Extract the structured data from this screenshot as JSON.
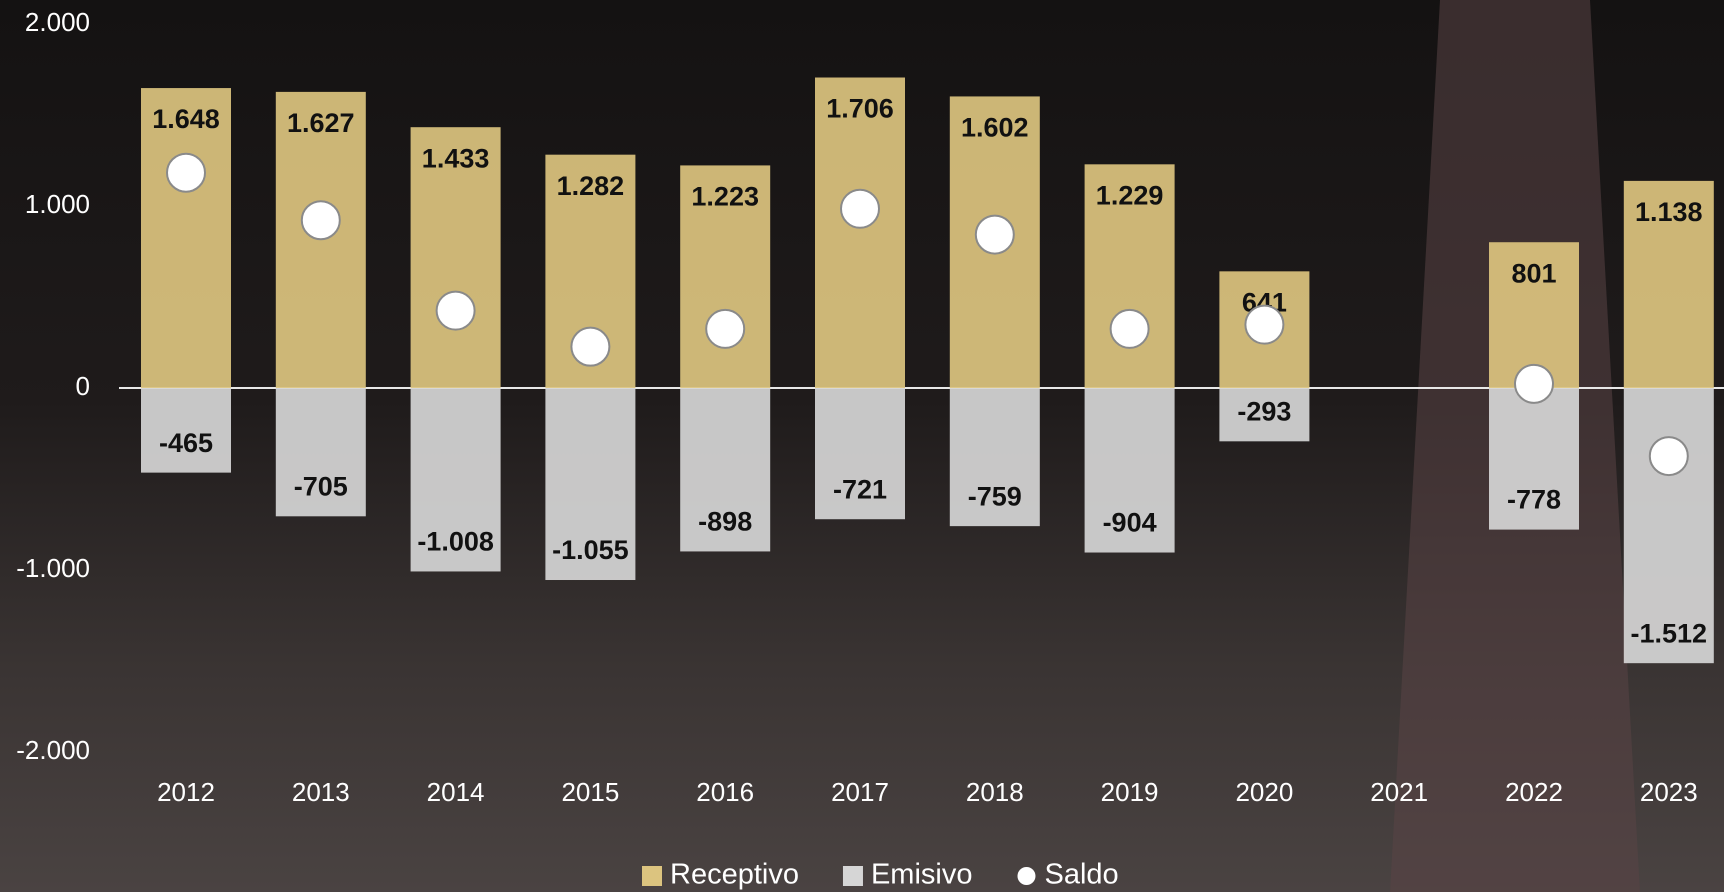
{
  "chart_data": {
    "type": "bar",
    "categories": [
      "2012",
      "2013",
      "2014",
      "2015",
      "2016",
      "2017",
      "2018",
      "2019",
      "2020",
      "2021",
      "2022",
      "2023"
    ],
    "series": [
      {
        "name": "Receptivo",
        "type": "bar",
        "color": "#dcc47f",
        "values": [
          1648,
          1627,
          1433,
          1282,
          1223,
          1706,
          1602,
          1229,
          641,
          null,
          801,
          1138
        ],
        "value_labels": [
          "1.648",
          "1.627",
          "1.433",
          "1.282",
          "1.223",
          "1.706",
          "1.602",
          "1.229",
          "641",
          null,
          "801",
          "1.138"
        ]
      },
      {
        "name": "Emisivo",
        "type": "bar",
        "color": "#d6d6d6",
        "values": [
          -465,
          -705,
          -1008,
          -1055,
          -898,
          -721,
          -759,
          -904,
          -293,
          null,
          -778,
          -1512
        ],
        "value_labels": [
          "-465",
          "-705",
          "-1.008",
          "-1.055",
          "-898",
          "-721",
          "-759",
          "-904",
          "-293",
          null,
          "-778",
          "-1.512"
        ]
      },
      {
        "name": "Saldo",
        "type": "scatter",
        "color": "#ffffff",
        "values": [
          1183,
          922,
          425,
          227,
          325,
          985,
          843,
          325,
          348,
          null,
          23,
          -374
        ]
      }
    ],
    "ylim": [
      -2000,
      2000
    ],
    "yticks": [
      {
        "value": 2000,
        "label": "2.000"
      },
      {
        "value": 1000,
        "label": "1.000"
      },
      0,
      {
        "value": -1000,
        "label": "-1.000"
      },
      {
        "value": -2000,
        "label": "-2.000"
      }
    ],
    "zero_line": true,
    "legend": "bottom"
  }
}
